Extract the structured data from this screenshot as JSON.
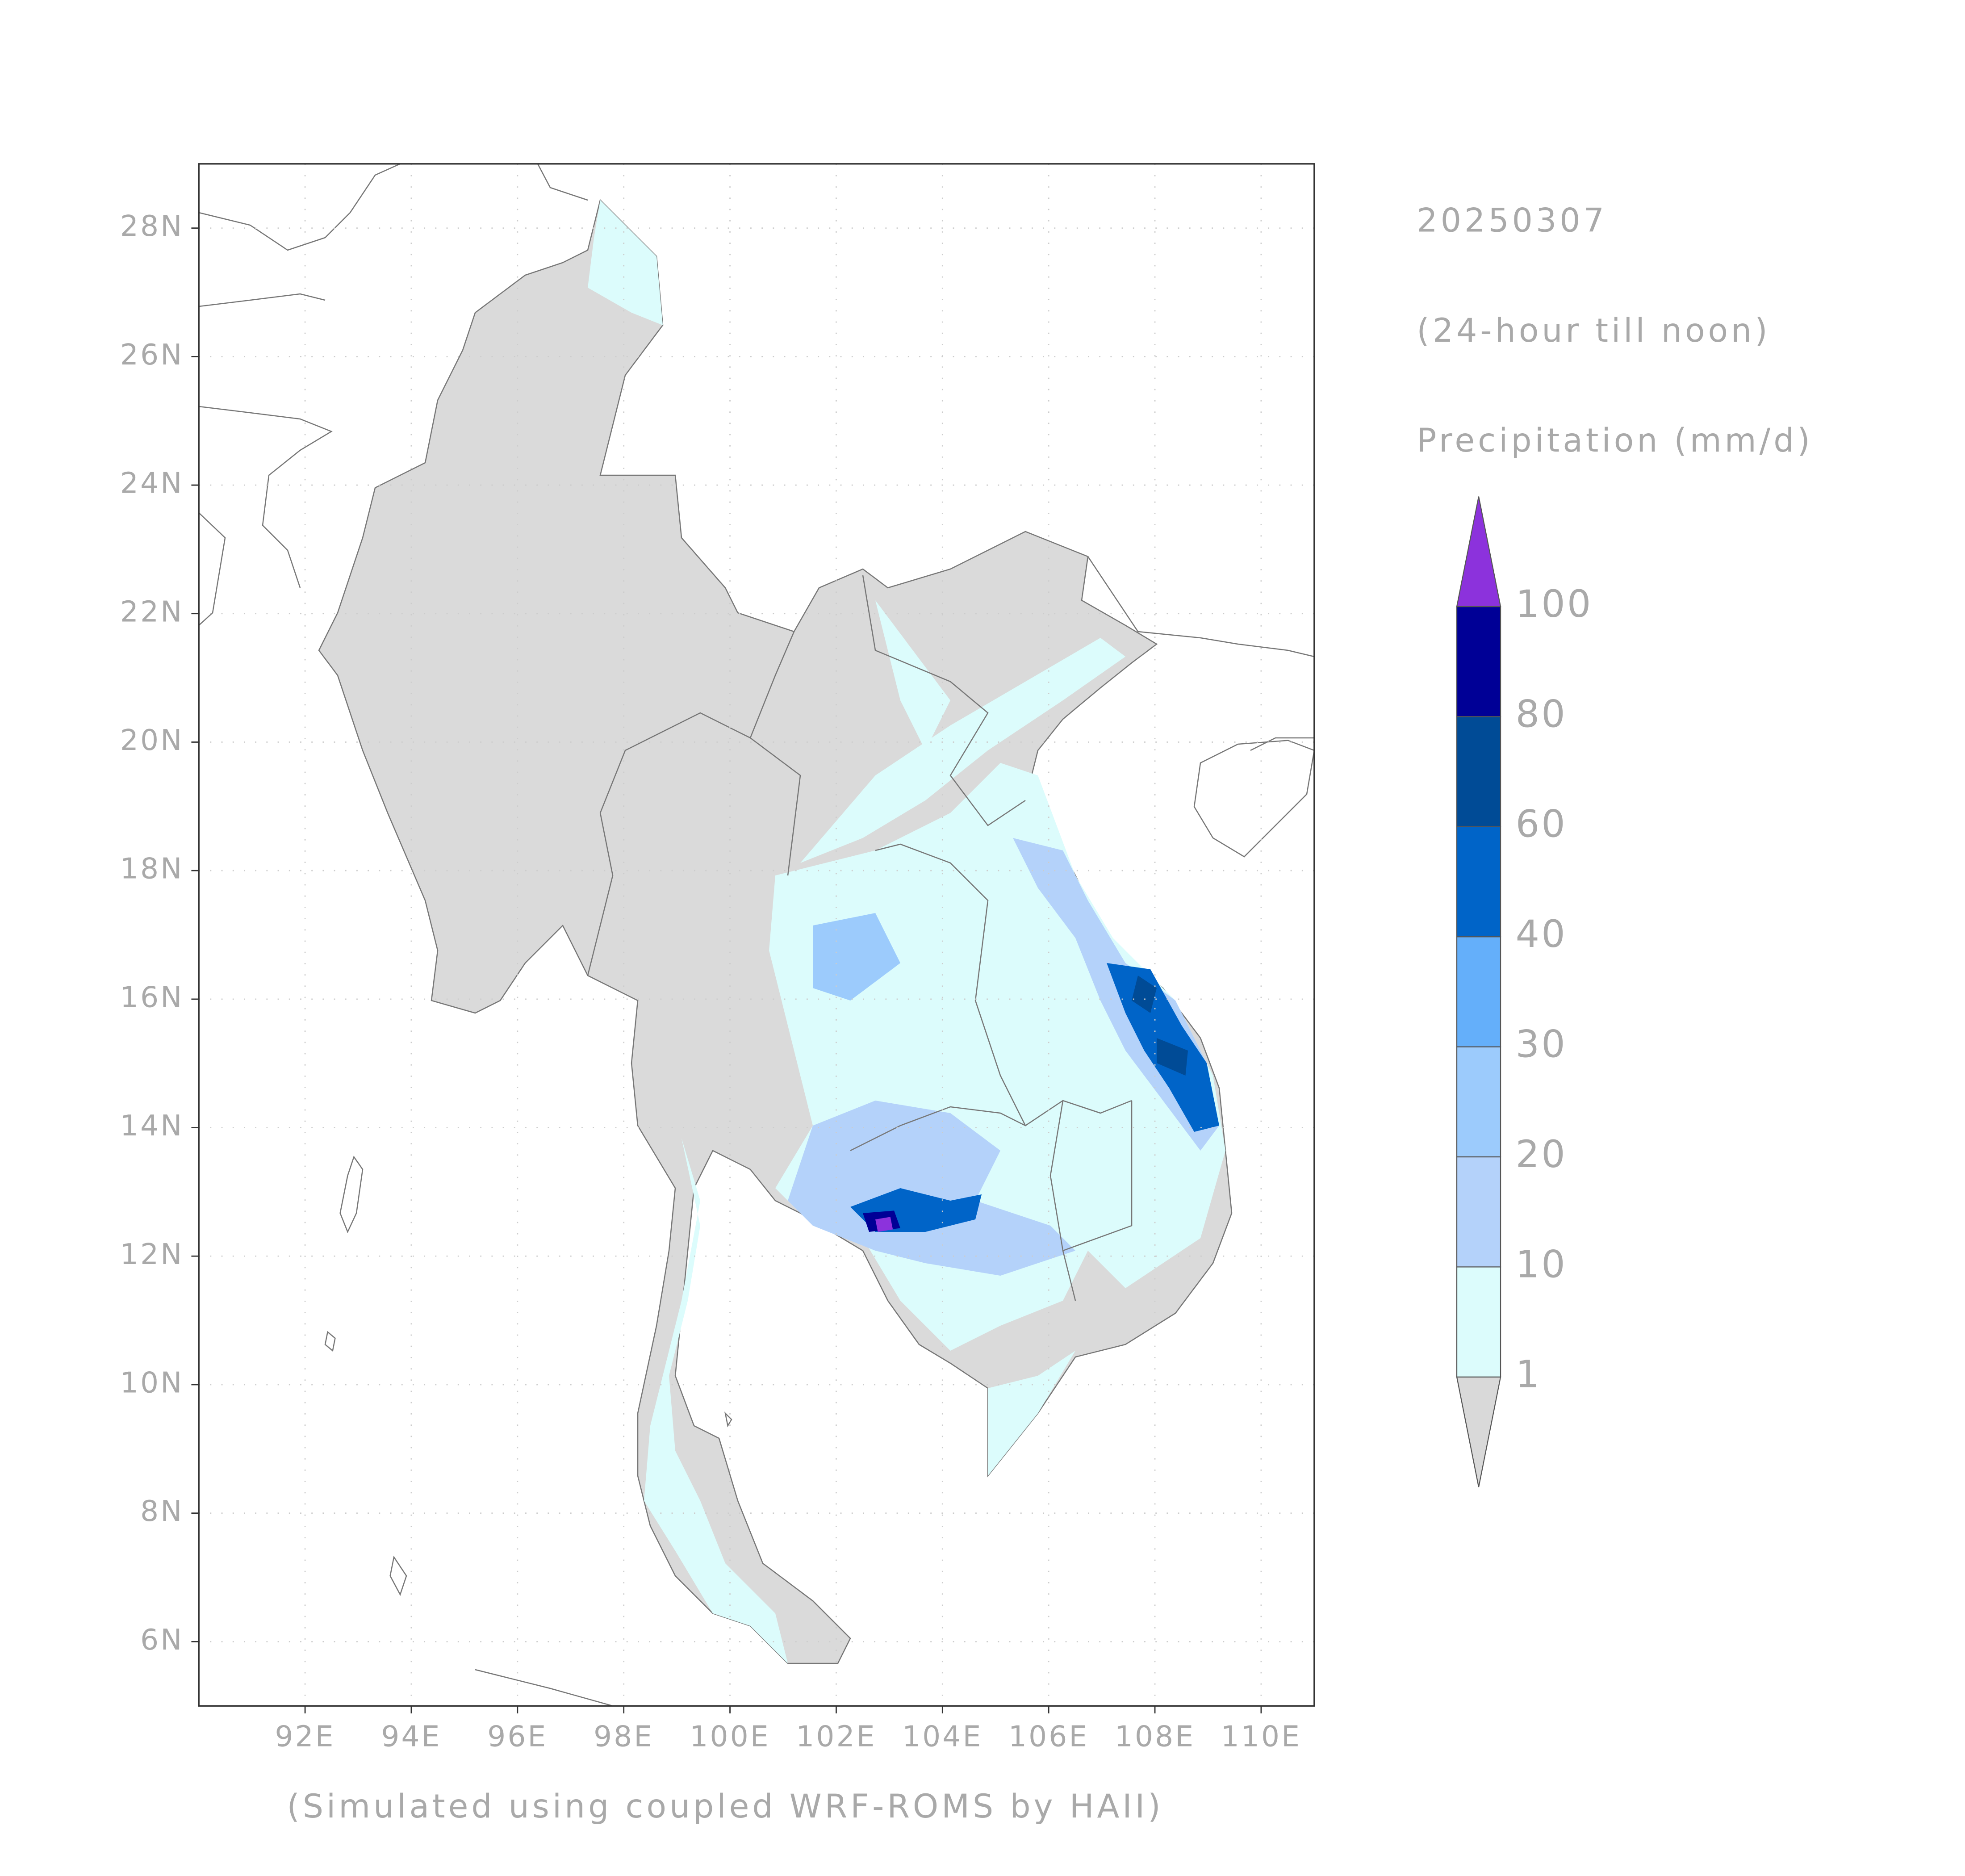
{
  "header": {
    "date": "20250307",
    "subtitle": "(24-hour till noon)",
    "variable": "Precipitation (mm/d)"
  },
  "map": {
    "xlim": [
      90,
      111
    ],
    "ylim": [
      5,
      29
    ],
    "grid": true,
    "xticks": [
      {
        "value": 92,
        "label": "92E"
      },
      {
        "value": 94,
        "label": "94E"
      },
      {
        "value": 96,
        "label": "96E"
      },
      {
        "value": 98,
        "label": "98E"
      },
      {
        "value": 100,
        "label": "100E"
      },
      {
        "value": 102,
        "label": "102E"
      },
      {
        "value": 104,
        "label": "104E"
      },
      {
        "value": 106,
        "label": "106E"
      },
      {
        "value": 108,
        "label": "108E"
      },
      {
        "value": 110,
        "label": "110E"
      }
    ],
    "yticks": [
      {
        "value": 6,
        "label": "6N"
      },
      {
        "value": 8,
        "label": "8N"
      },
      {
        "value": 10,
        "label": "10N"
      },
      {
        "value": 12,
        "label": "12N"
      },
      {
        "value": 14,
        "label": "14N"
      },
      {
        "value": 16,
        "label": "16N"
      },
      {
        "value": 18,
        "label": "18N"
      },
      {
        "value": 20,
        "label": "20N"
      },
      {
        "value": 22,
        "label": "22N"
      },
      {
        "value": 24,
        "label": "24N"
      },
      {
        "value": 26,
        "label": "26N"
      },
      {
        "value": 28,
        "label": "28N"
      }
    ]
  },
  "colorbar": {
    "levels": [
      1,
      10,
      20,
      30,
      40,
      60,
      80,
      100
    ],
    "colors": [
      "#d9d9d9",
      "#dcfcfc",
      "#b4d2fa",
      "#9ccbfc",
      "#64affa",
      "#0064c8",
      "#004b96",
      "#000096",
      "#8c32dc"
    ]
  },
  "footer": "(Simulated using coupled WRF-ROMS by HAII)"
}
